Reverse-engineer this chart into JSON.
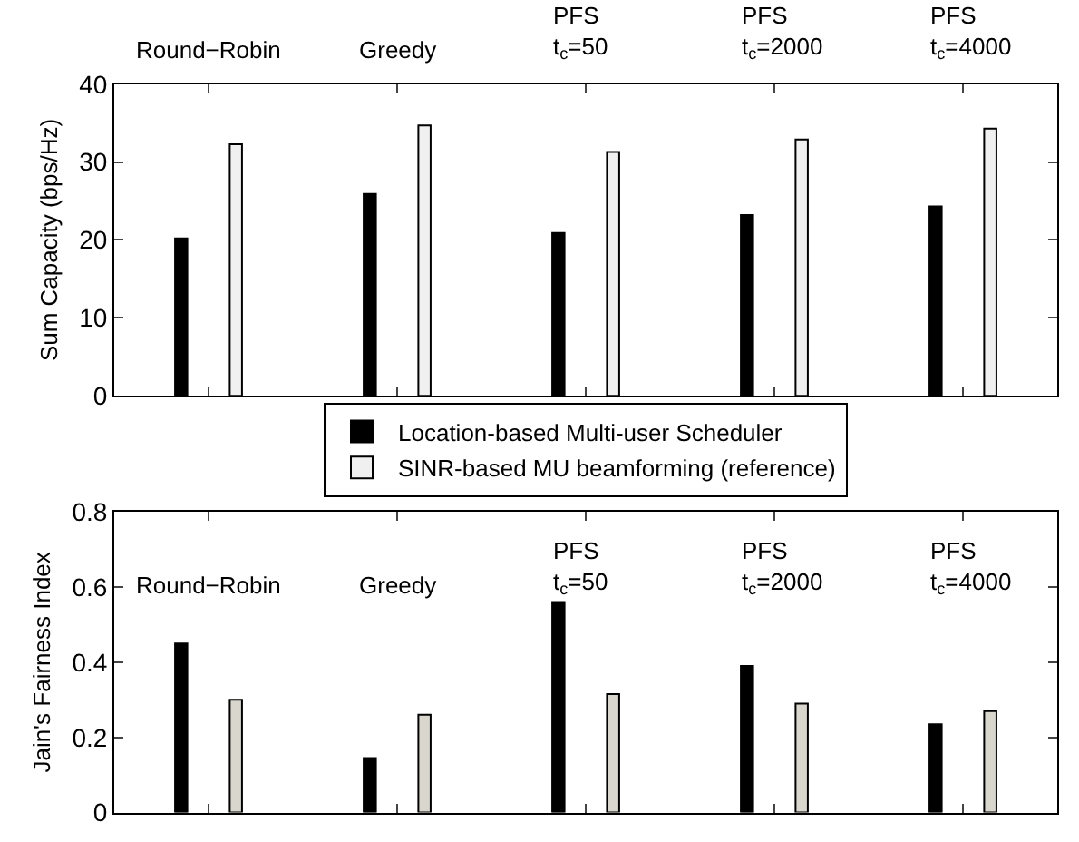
{
  "chart_data": [
    {
      "type": "bar",
      "ylabel": "Sum Capacity (bps/Hz)",
      "categories": [
        null,
        null,
        null,
        null,
        null
      ],
      "ylim": [
        0,
        40
      ],
      "yticks": [
        0,
        10,
        20,
        30,
        40
      ],
      "tick_labels": "y",
      "legend": "bottom",
      "annotations": [
        "Round−Robin",
        "Greedy",
        "PFS\nt$_{c}$=50",
        "PFS\nt$_{c}$=2000",
        "PFS\nt$_{c}$=4000"
      ],
      "series": [
        {
          "name": "Location-based Multi-user Scheduler",
          "color": "#000000",
          "values": [
            20.2,
            25.9,
            20.9,
            23.2,
            24.3
          ]
        },
        {
          "name": "SINR-based MU beamforming (reference)",
          "color": "#f0f0f0",
          "values": [
            32.3,
            34.7,
            31.3,
            32.9,
            34.3
          ]
        }
      ]
    },
    {
      "type": "bar",
      "ylabel": "Jain's Fairness Index",
      "categories": [
        null,
        null,
        null,
        null,
        null
      ],
      "ylim": [
        0,
        0.8
      ],
      "yticks": [
        0,
        0.2,
        0.4,
        0.6,
        0.8
      ],
      "tick_labels": "y",
      "annotations": [
        "Round−Robin",
        "Greedy",
        "PFS\nt$_{c}$=50",
        "PFS\nt$_{c}$=2000",
        "PFS\nt$_{c}$=4000"
      ],
      "series": [
        {
          "color": "#000000",
          "values": [
            0.45,
            0.145,
            0.56,
            0.39,
            0.235
          ]
        },
        {
          "color": "#d9d6ce",
          "values": [
            0.3,
            0.26,
            0.315,
            0.29,
            0.27
          ]
        }
      ]
    }
  ]
}
